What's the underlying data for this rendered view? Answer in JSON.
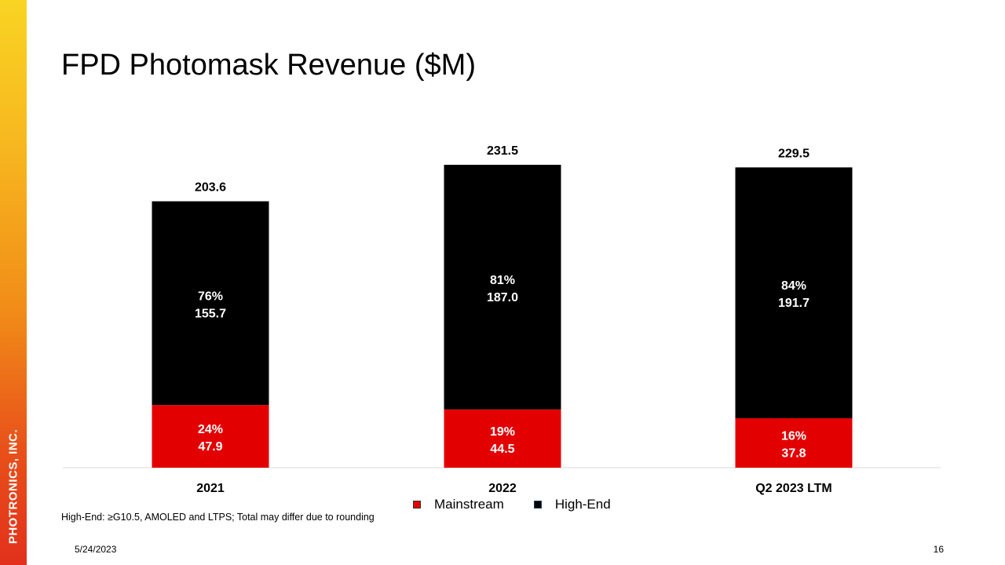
{
  "brand": "PHOTRONICS, INC.",
  "title": "FPD Photomask Revenue ($M)",
  "footnote": "High-End: ≥G10.5, AMOLED and LTPS; Total may differ due to rounding",
  "date": "5/24/2023",
  "page_number": "16",
  "colors": {
    "mainstream": "#e30000",
    "high_end": "#000000",
    "accent_gradient_top": "#f9d423",
    "accent_gradient_bottom": "#e2301c"
  },
  "chart_data": {
    "type": "bar",
    "stacked": true,
    "categories": [
      "2021",
      "2022",
      "Q2 2023 LTM"
    ],
    "series": [
      {
        "name": "Mainstream",
        "color": "#e30000",
        "values": [
          47.9,
          44.5,
          37.8
        ],
        "percent_labels": [
          "24%",
          "19%",
          "16%"
        ],
        "value_labels": [
          "47.9",
          "44.5",
          "37.8"
        ]
      },
      {
        "name": "High-End",
        "color": "#000000",
        "values": [
          155.7,
          187.0,
          191.7
        ],
        "percent_labels": [
          "76%",
          "81%",
          "84%"
        ],
        "value_labels": [
          "155.7",
          "187.0",
          "191.7"
        ]
      }
    ],
    "totals": [
      203.6,
      231.5,
      229.5
    ],
    "total_labels": [
      "203.6",
      "231.5",
      "229.5"
    ],
    "ylim": [
      0,
      260
    ],
    "gridlines": false,
    "legend_position": "bottom",
    "xlabel": "",
    "ylabel": ""
  }
}
